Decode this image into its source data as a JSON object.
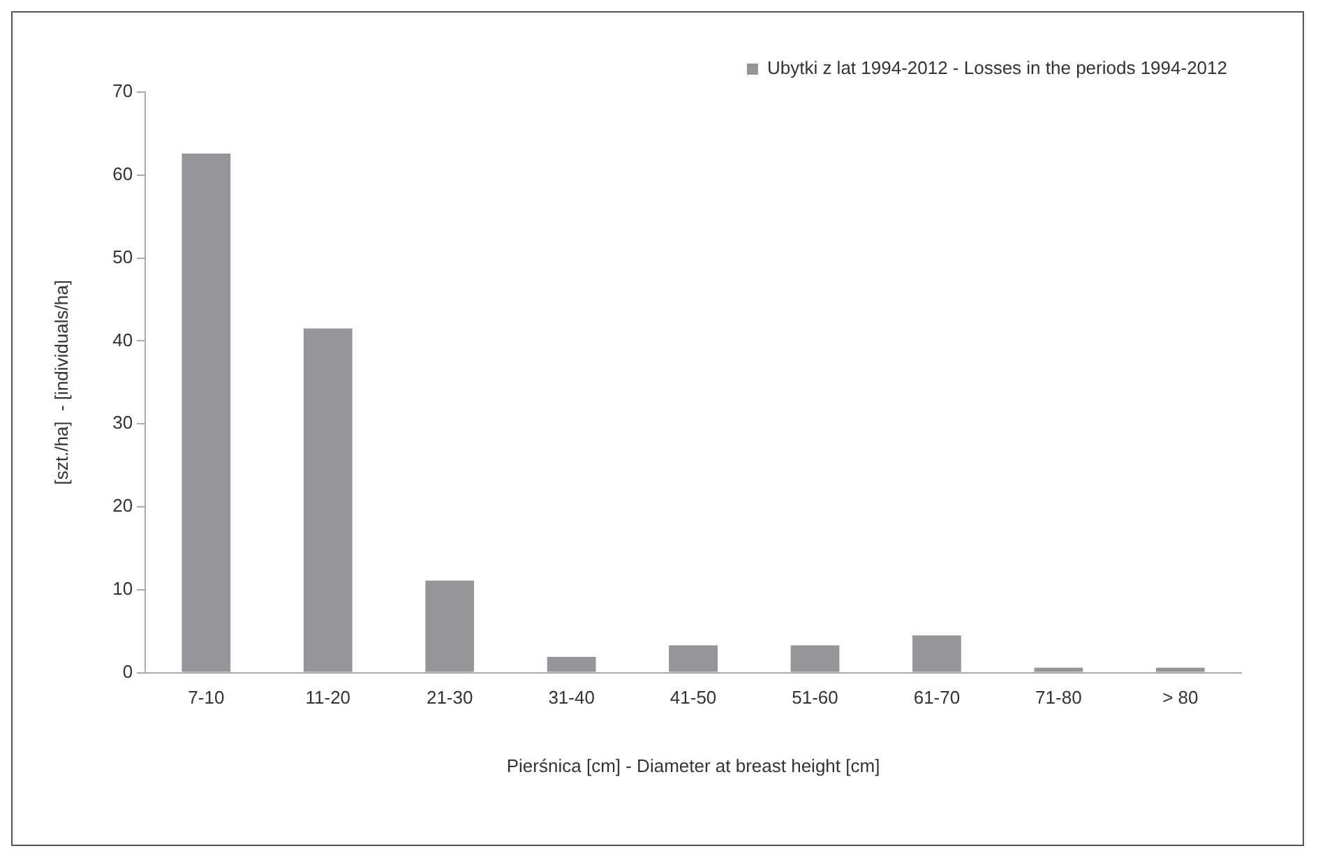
{
  "chart_data": {
    "type": "bar",
    "xlabel": "Pierśnica [cm] - Diameter at breast height [cm]",
    "ylabel": "[szt./ha]  - [individuals/ha]",
    "categories": [
      "7-10",
      "11-20",
      "21-30",
      "31-40",
      "41-50",
      "51-60",
      "61-70",
      "71-80",
      "> 80"
    ],
    "series": [
      {
        "name": "Ubytki z lat 1994-2012 - Losses in the periods 1994-2012",
        "color": "#939598",
        "values": [
          62.6,
          41.5,
          11.1,
          1.9,
          3.3,
          3.3,
          4.5,
          0.6,
          0.6
        ]
      }
    ],
    "ylim": [
      0,
      70
    ],
    "yticks": [
      0,
      10,
      20,
      30,
      40,
      50,
      60,
      70
    ],
    "grid": false,
    "legend": "top right"
  }
}
